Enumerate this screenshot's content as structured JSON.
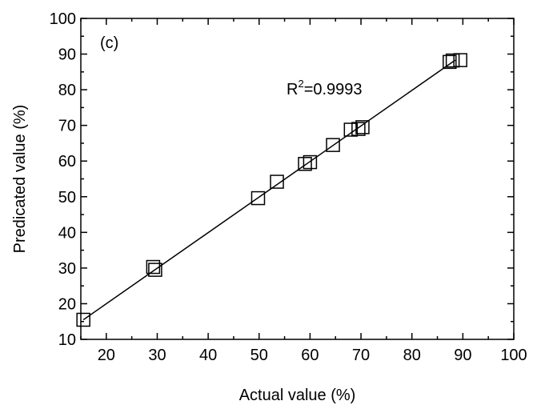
{
  "chart_data": {
    "type": "scatter",
    "panel_label": "(c)",
    "xlabel": "Actual value (%)",
    "ylabel": "Predicated value (%)",
    "xlim": [
      15,
      100
    ],
    "ylim": [
      10,
      100
    ],
    "xticks": [
      20,
      30,
      40,
      50,
      60,
      70,
      80,
      90,
      100
    ],
    "yticks": [
      10,
      20,
      30,
      40,
      50,
      60,
      70,
      80,
      90,
      100
    ],
    "grid": false,
    "legend": "none",
    "annotation": {
      "base": "R",
      "superscript": "2",
      "value": "=0.9993"
    },
    "fit_line": {
      "x": [
        15.5,
        88.5
      ],
      "y": [
        15.5,
        88.3
      ]
    },
    "points": [
      {
        "x": 15.5,
        "y": 15.5
      },
      {
        "x": 29.2,
        "y": 30.3
      },
      {
        "x": 29.6,
        "y": 29.5
      },
      {
        "x": 49.8,
        "y": 49.6
      },
      {
        "x": 53.5,
        "y": 54.2
      },
      {
        "x": 59.0,
        "y": 59.2
      },
      {
        "x": 60.0,
        "y": 59.7
      },
      {
        "x": 64.5,
        "y": 64.5
      },
      {
        "x": 68.0,
        "y": 68.8
      },
      {
        "x": 69.5,
        "y": 69.0
      },
      {
        "x": 70.3,
        "y": 69.5
      },
      {
        "x": 87.4,
        "y": 87.8
      },
      {
        "x": 88.0,
        "y": 88.2
      },
      {
        "x": 89.5,
        "y": 88.3
      }
    ],
    "colors": {
      "axis": "#000000",
      "marker_stroke": "#000000",
      "line": "#000000"
    }
  }
}
